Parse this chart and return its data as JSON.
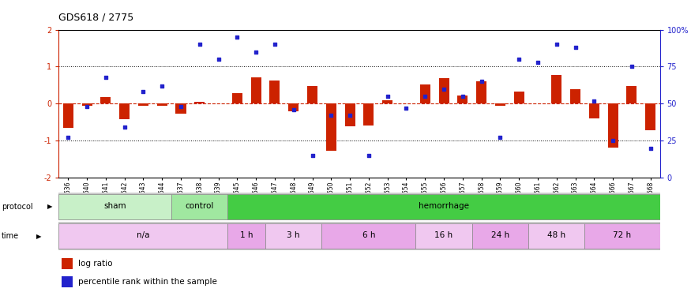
{
  "title": "GDS618 / 2775",
  "samples": [
    "GSM16636",
    "GSM16640",
    "GSM16641",
    "GSM16642",
    "GSM16643",
    "GSM16644",
    "GSM16637",
    "GSM16638",
    "GSM16639",
    "GSM16645",
    "GSM16646",
    "GSM16647",
    "GSM16648",
    "GSM16649",
    "GSM16650",
    "GSM16651",
    "GSM16652",
    "GSM16653",
    "GSM16654",
    "GSM16655",
    "GSM16656",
    "GSM16657",
    "GSM16658",
    "GSM16659",
    "GSM16660",
    "GSM16661",
    "GSM16662",
    "GSM16663",
    "GSM16664",
    "GSM16666",
    "GSM16667",
    "GSM16668"
  ],
  "log_ratio": [
    -0.65,
    -0.05,
    0.18,
    -0.42,
    -0.05,
    -0.05,
    -0.28,
    0.05,
    0.0,
    0.28,
    0.72,
    0.62,
    -0.2,
    0.48,
    -1.28,
    -0.62,
    -0.6,
    0.1,
    0.0,
    0.52,
    0.68,
    0.22,
    0.6,
    -0.05,
    0.32,
    0.0,
    0.78,
    0.38,
    -0.4,
    -1.18,
    0.48,
    -0.72
  ],
  "percentile": [
    27,
    48,
    68,
    34,
    58,
    62,
    48,
    90,
    80,
    95,
    85,
    90,
    46,
    15,
    42,
    42,
    15,
    55,
    47,
    55,
    60,
    55,
    65,
    27,
    80,
    78,
    90,
    88,
    52,
    25,
    75,
    20
  ],
  "protocol_groups": [
    {
      "label": "sham",
      "start": 0,
      "end": 5,
      "color": "#c8f0c8"
    },
    {
      "label": "control",
      "start": 6,
      "end": 8,
      "color": "#a0e8a0"
    },
    {
      "label": "hemorrhage",
      "start": 9,
      "end": 31,
      "color": "#44cc44"
    }
  ],
  "time_groups": [
    {
      "label": "n/a",
      "start": 0,
      "end": 8,
      "color": "#f0c8f0"
    },
    {
      "label": "1 h",
      "start": 9,
      "end": 10,
      "color": "#e8a8e8"
    },
    {
      "label": "3 h",
      "start": 11,
      "end": 13,
      "color": "#f0c8f0"
    },
    {
      "label": "6 h",
      "start": 14,
      "end": 18,
      "color": "#e8a8e8"
    },
    {
      "label": "16 h",
      "start": 19,
      "end": 21,
      "color": "#f0c8f0"
    },
    {
      "label": "24 h",
      "start": 22,
      "end": 24,
      "color": "#e8a8e8"
    },
    {
      "label": "48 h",
      "start": 25,
      "end": 27,
      "color": "#f0c8f0"
    },
    {
      "label": "72 h",
      "start": 28,
      "end": 31,
      "color": "#e8a8e8"
    }
  ],
  "bar_color": "#cc2200",
  "dot_color": "#2222cc",
  "ylim": [
    -2,
    2
  ],
  "y2lim": [
    0,
    100
  ],
  "bg_color": "#ffffff"
}
